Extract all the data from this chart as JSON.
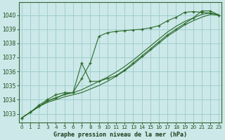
{
  "title": "Graphe pression niveau de la mer (hPa)",
  "background_color": "#cce8e8",
  "grid_color": "#99cccc",
  "line_color": "#2d6b2d",
  "xlim": [
    -0.3,
    23.3
  ],
  "ylim": [
    1032.4,
    1040.9
  ],
  "yticks": [
    1033,
    1034,
    1035,
    1036,
    1037,
    1038,
    1039,
    1040
  ],
  "xticks": [
    0,
    1,
    2,
    3,
    4,
    5,
    6,
    7,
    8,
    9,
    10,
    11,
    12,
    13,
    14,
    15,
    16,
    17,
    18,
    19,
    20,
    21,
    22,
    23
  ],
  "series": [
    {
      "x": [
        0,
        1,
        2,
        3,
        4,
        5,
        6,
        7,
        8,
        9,
        10,
        11,
        12,
        13,
        14,
        15,
        16,
        17,
        18,
        19,
        20,
        21,
        22,
        23
      ],
      "y": [
        1032.7,
        1033.1,
        1033.5,
        1033.9,
        1034.1,
        1034.4,
        1034.5,
        1035.5,
        1036.6,
        1038.5,
        1038.75,
        1038.85,
        1038.9,
        1038.95,
        1039.0,
        1039.1,
        1039.25,
        1039.6,
        1039.85,
        1040.2,
        1040.25,
        1040.2,
        1040.15,
        1040.0
      ],
      "marker": "+"
    },
    {
      "x": [
        0,
        1,
        2,
        3,
        4,
        5,
        6,
        7,
        8,
        9,
        10,
        11,
        12,
        13,
        14,
        15,
        16,
        17,
        18,
        19,
        20,
        21,
        22,
        23
      ],
      "y": [
        1032.7,
        1033.1,
        1033.5,
        1033.8,
        1034.0,
        1034.2,
        1034.35,
        1034.5,
        1034.75,
        1035.0,
        1035.3,
        1035.65,
        1036.05,
        1036.5,
        1037.0,
        1037.5,
        1038.0,
        1038.5,
        1038.9,
        1039.3,
        1039.6,
        1039.85,
        1040.05,
        1040.0
      ],
      "marker": null
    },
    {
      "x": [
        0,
        1,
        2,
        3,
        4,
        5,
        6,
        7,
        8,
        9,
        10,
        11,
        12,
        13,
        14,
        15,
        16,
        17,
        18,
        19,
        20,
        21,
        22,
        23
      ],
      "y": [
        1032.7,
        1033.1,
        1033.5,
        1033.9,
        1034.15,
        1034.35,
        1034.5,
        1034.7,
        1035.0,
        1035.3,
        1035.6,
        1035.95,
        1036.35,
        1036.8,
        1037.3,
        1037.8,
        1038.3,
        1038.8,
        1039.2,
        1039.55,
        1039.8,
        1040.05,
        1040.15,
        1040.0
      ],
      "marker": null
    },
    {
      "x": [
        0,
        1,
        2,
        3,
        4,
        5,
        6,
        7,
        8,
        9,
        10,
        11,
        12,
        13,
        14,
        15,
        16,
        17,
        18,
        19,
        20,
        21,
        22,
        23
      ],
      "y": [
        1032.7,
        1033.1,
        1033.6,
        1034.0,
        1034.35,
        1034.5,
        1034.5,
        1036.6,
        1035.3,
        1035.3,
        1035.5,
        1035.7,
        1036.1,
        1036.6,
        1037.1,
        1037.6,
        1038.1,
        1038.6,
        1039.0,
        1039.4,
        1039.8,
        1040.3,
        1040.3,
        1040.0
      ],
      "marker": "+"
    }
  ]
}
